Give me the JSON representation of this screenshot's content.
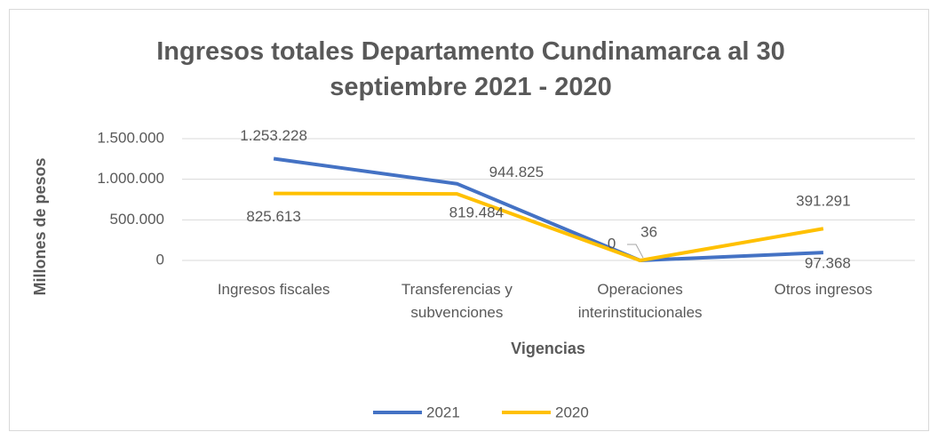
{
  "chart_data": {
    "type": "line",
    "title": "Ingresos totales Departamento Cundinamarca al 30 septiembre 2021 - 2020",
    "xlabel": "Vigencias",
    "ylabel": "Millones de pesos",
    "categories": [
      "Ingresos fiscales",
      "Transferencias y subvenciones",
      "Operaciones interinstitucionales",
      "Otros ingresos"
    ],
    "series": [
      {
        "name": "2021",
        "color": "#4472c4",
        "values": [
          1253228,
          944825,
          0,
          97368
        ],
        "value_labels": [
          "1.253.228",
          "944.825",
          "0",
          "97.368"
        ]
      },
      {
        "name": "2020",
        "color": "#ffc000",
        "values": [
          825613,
          819484,
          36,
          391291
        ],
        "value_labels": [
          "825.613",
          "819.484",
          "36",
          "391.291"
        ]
      }
    ],
    "ylim": [
      0,
      1500000
    ],
    "yticks": [
      0,
      {
        "value": 500000,
        "label": "500.000"
      },
      {
        "value": 1000000,
        "label": "1.000.000"
      },
      {
        "value": 1500000,
        "label": "1.500.000"
      }
    ],
    "grid": true,
    "legend": "bottom"
  }
}
